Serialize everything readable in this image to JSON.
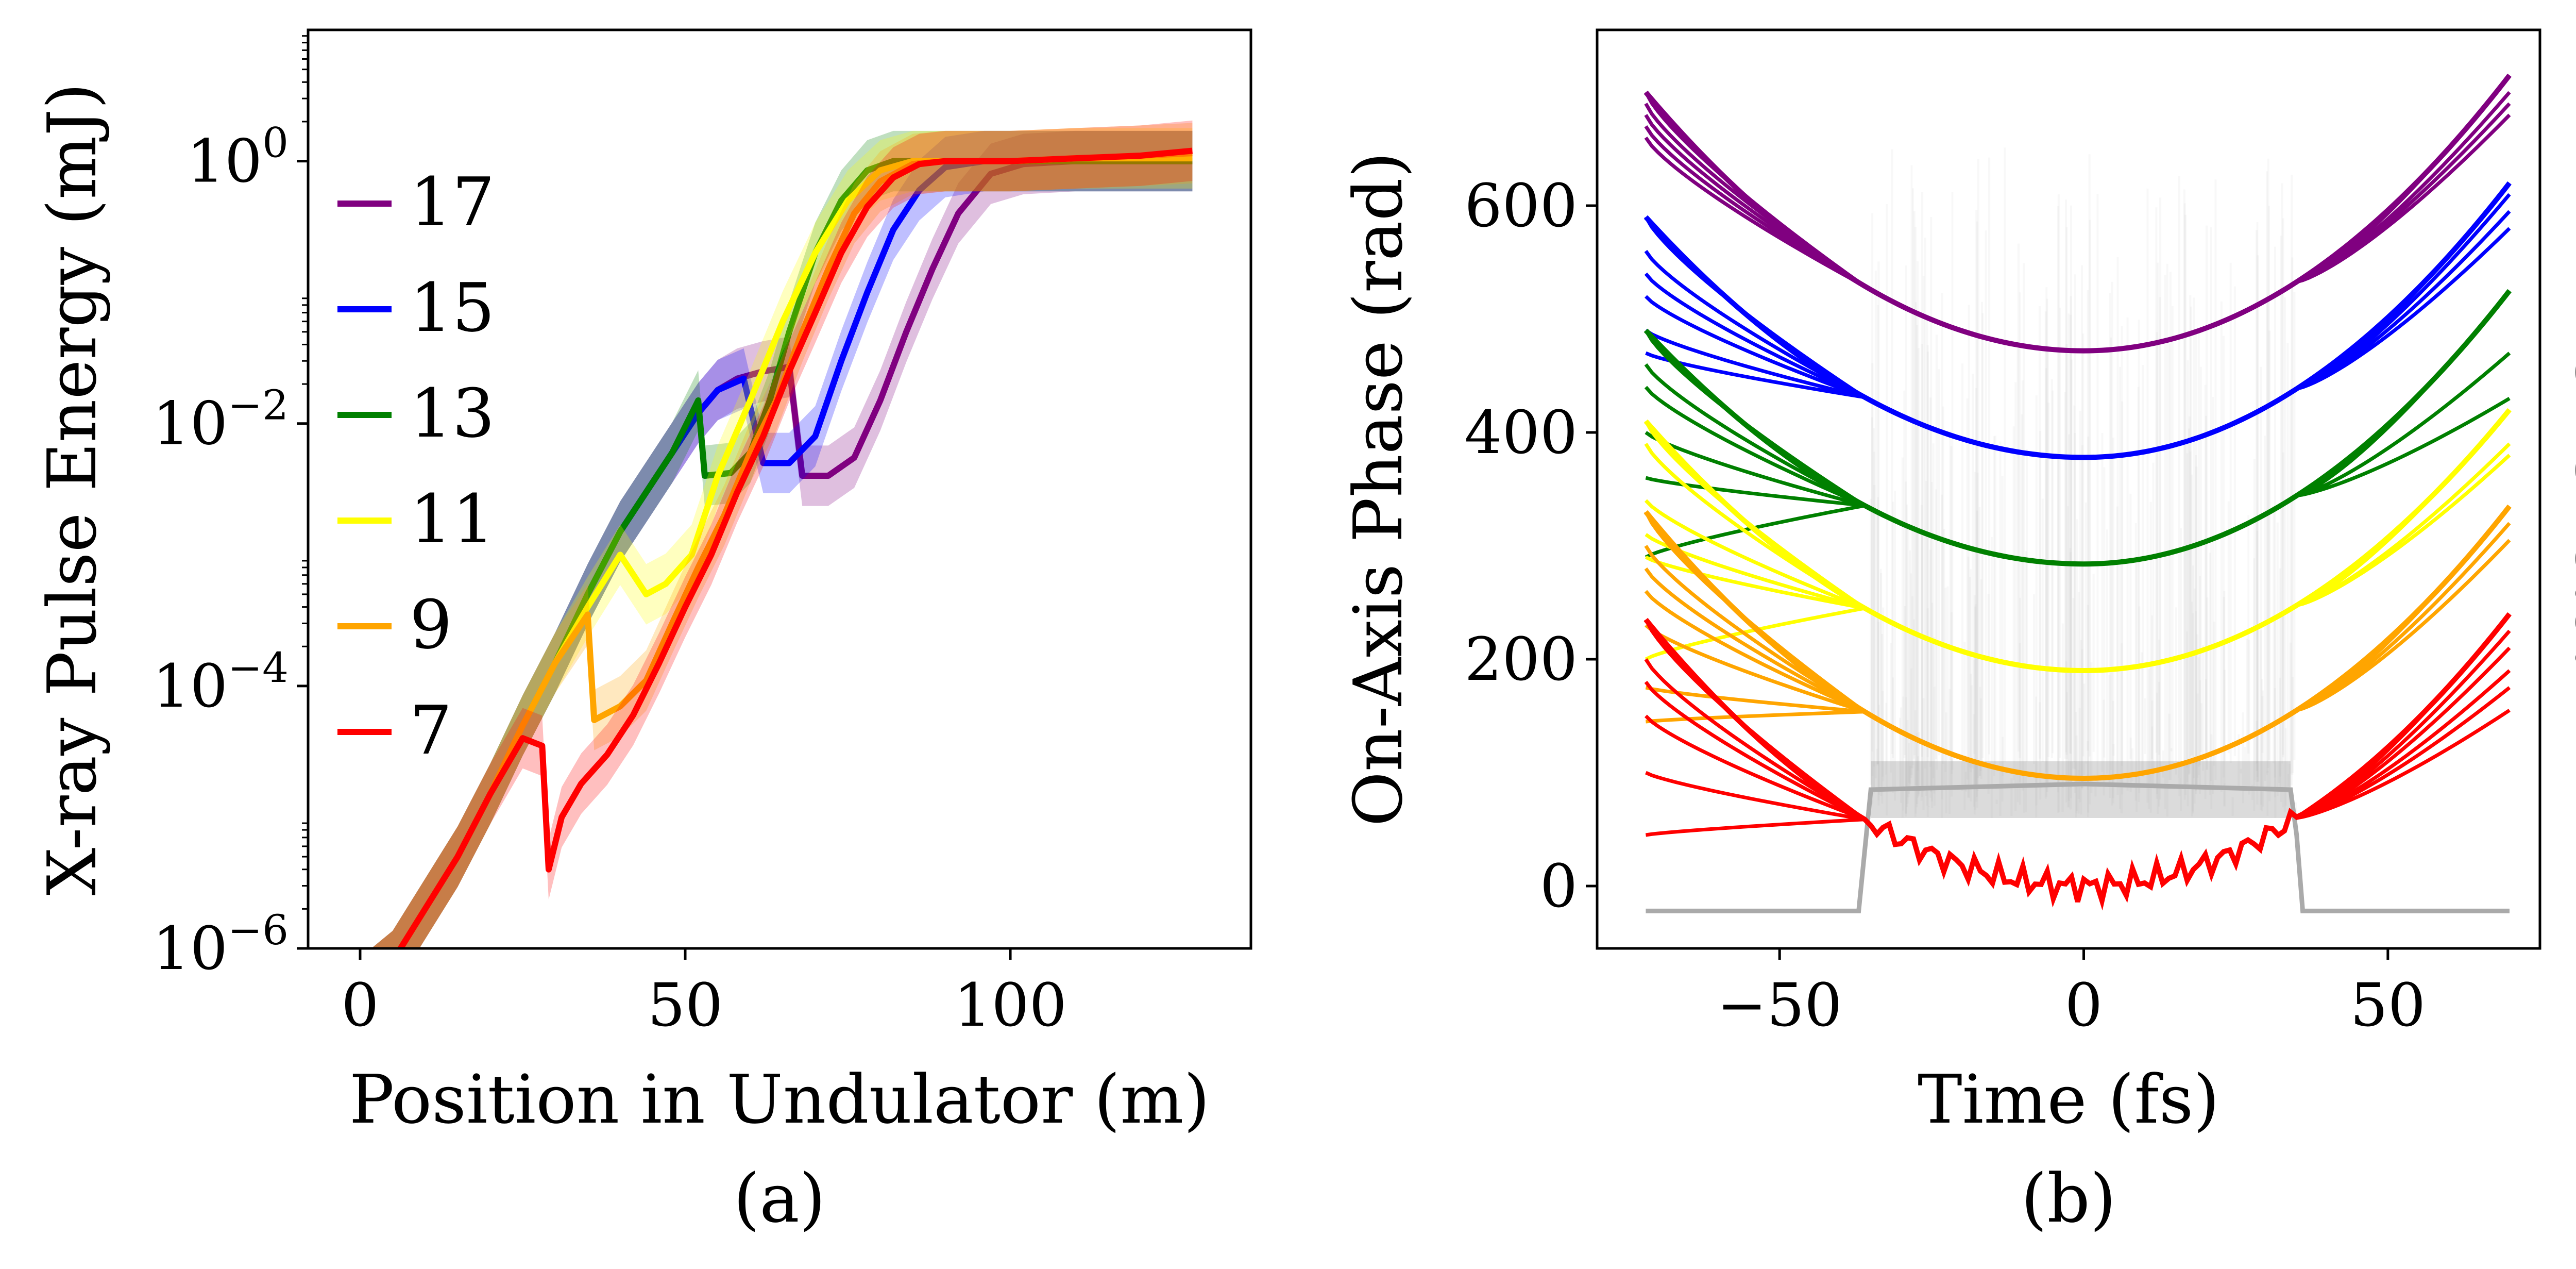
{
  "chart_data": [
    {
      "type": "line",
      "panel_label": "(a)",
      "xlabel": "Position in Undulator (m)",
      "ylabel": "X-ray Pulse Energy (mJ)",
      "xlim": [
        -8,
        137
      ],
      "ylim": [
        1e-06,
        10
      ],
      "yscale": "log",
      "xticks": [
        0,
        50,
        100
      ],
      "xtick_labels": [
        "0",
        "50",
        "100"
      ],
      "yticks": [
        1e-06,
        0.0001,
        0.01,
        1
      ],
      "ytick_labels": [
        {
          "base": "10",
          "exp": "−6"
        },
        {
          "base": "10",
          "exp": "−4"
        },
        {
          "base": "10",
          "exp": "−2"
        },
        {
          "base": "10",
          "exp": "0"
        }
      ],
      "legend_position": "upper-left",
      "series": [
        {
          "name": "17",
          "color": "#800080",
          "x": [
            0,
            5,
            10,
            15,
            20,
            25,
            30,
            35,
            40,
            44,
            48,
            52,
            55,
            58,
            62,
            66,
            68,
            72,
            76,
            80,
            84,
            88,
            92,
            97,
            102,
            110,
            118,
            128
          ],
          "y": [
            5e-07,
            8e-07,
            2e-06,
            5e-06,
            1.5e-05,
            5e-05,
            0.00015,
            0.0005,
            0.0015,
            0.003,
            0.006,
            0.012,
            0.018,
            0.022,
            0.025,
            0.027,
            0.004,
            0.004,
            0.0055,
            0.015,
            0.05,
            0.15,
            0.4,
            0.8,
            0.95,
            1.0,
            1.0,
            1.0
          ]
        },
        {
          "name": "15",
          "color": "#0000FF",
          "x": [
            0,
            5,
            10,
            15,
            20,
            25,
            30,
            35,
            40,
            44,
            48,
            52,
            55,
            59,
            62,
            66,
            70,
            74,
            78,
            82,
            86,
            90,
            96,
            102,
            110,
            118,
            128
          ],
          "y": [
            5e-07,
            8e-07,
            2e-06,
            5e-06,
            1.5e-05,
            5e-05,
            0.00015,
            0.0005,
            0.0015,
            0.003,
            0.006,
            0.012,
            0.018,
            0.022,
            0.005,
            0.005,
            0.008,
            0.03,
            0.1,
            0.3,
            0.6,
            0.9,
            1.0,
            1.0,
            1.0,
            1.0,
            1.0
          ]
        },
        {
          "name": "13",
          "color": "#008000",
          "x": [
            0,
            5,
            10,
            15,
            20,
            25,
            30,
            35,
            40,
            44,
            48,
            52,
            53,
            57,
            60,
            63,
            66,
            70,
            74,
            78,
            82,
            86,
            90,
            95,
            100,
            110,
            120,
            128
          ],
          "y": [
            5e-07,
            8e-07,
            2e-06,
            5e-06,
            1.5e-05,
            5e-05,
            0.00015,
            0.0005,
            0.0015,
            0.003,
            0.006,
            0.015,
            0.004,
            0.0042,
            0.006,
            0.015,
            0.05,
            0.2,
            0.5,
            0.85,
            1.0,
            1.0,
            1.0,
            1.0,
            1.0,
            1.0,
            1.0,
            1.0
          ]
        },
        {
          "name": "11",
          "color": "#FFFF00",
          "x": [
            0,
            5,
            10,
            15,
            20,
            25,
            30,
            35,
            40,
            44,
            47,
            51,
            55,
            60,
            65,
            70,
            75,
            80,
            85,
            90,
            95,
            100,
            110,
            120,
            128
          ],
          "y": [
            5e-07,
            8e-07,
            2e-06,
            5e-06,
            1.5e-05,
            5e-05,
            0.00015,
            0.0004,
            0.001,
            0.0005,
            0.0006,
            0.001,
            0.004,
            0.015,
            0.06,
            0.2,
            0.5,
            0.85,
            1.0,
            1.0,
            1.0,
            1.0,
            1.05,
            1.05,
            1.05
          ]
        },
        {
          "name": "9",
          "color": "#FFA500",
          "x": [
            0,
            5,
            10,
            15,
            20,
            25,
            30,
            35,
            36,
            40,
            44,
            48,
            52,
            56,
            60,
            64,
            68,
            72,
            76,
            80,
            85,
            90,
            95,
            100,
            110,
            120,
            128
          ],
          "y": [
            5e-07,
            8e-07,
            2e-06,
            5e-06,
            1.5e-05,
            5e-05,
            0.00015,
            0.00035,
            5.5e-05,
            7e-05,
            0.00011,
            0.0003,
            0.0008,
            0.002,
            0.006,
            0.015,
            0.05,
            0.15,
            0.4,
            0.7,
            0.95,
            1.0,
            1.0,
            1.0,
            1.05,
            1.1,
            1.15
          ]
        },
        {
          "name": "7",
          "color": "#FF0000",
          "x": [
            0,
            5,
            10,
            15,
            20,
            25,
            28,
            29,
            31,
            34,
            38,
            42,
            46,
            50,
            54,
            58,
            62,
            66,
            70,
            74,
            78,
            82,
            86,
            90,
            95,
            100,
            110,
            120,
            128
          ],
          "y": [
            5e-07,
            8e-07,
            2e-06,
            5e-06,
            1.5e-05,
            4e-05,
            3.5e-05,
            4e-06,
            1e-05,
            1.8e-05,
            3e-05,
            6e-05,
            0.00015,
            0.0004,
            0.001,
            0.003,
            0.008,
            0.025,
            0.07,
            0.2,
            0.45,
            0.75,
            0.95,
            1.0,
            1.0,
            1.0,
            1.05,
            1.1,
            1.2
          ]
        }
      ]
    },
    {
      "type": "line",
      "panel_label": "(b)",
      "xlabel": "Time (fs)",
      "ylabel": "On-Axis Phase (rad)",
      "right_label": "Power a.u.",
      "xlim": [
        -80,
        75
      ],
      "ylim": [
        -55,
        755
      ],
      "xticks": [
        -50,
        0,
        50
      ],
      "xtick_labels": [
        "−50",
        "0",
        "50"
      ],
      "yticks": [
        0,
        200,
        400,
        600
      ],
      "ytick_labels": [
        "0",
        "200",
        "400",
        "600"
      ],
      "power_trace": {
        "color": "#aaaaaa",
        "t": [
          -72,
          -37,
          -35,
          0,
          34,
          35,
          36,
          70
        ],
        "level": [
          -22,
          -22,
          85,
          90,
          85,
          45,
          -22,
          -22
        ]
      },
      "curves": [
        {
          "harmonic": "17",
          "color": "#800080",
          "min": 472,
          "left_start": 700,
          "right_end": 715,
          "left_spread": [
            700,
            690,
            680,
            670,
            660
          ],
          "right_spread": [
            715,
            700,
            690,
            680
          ]
        },
        {
          "harmonic": "15",
          "color": "#0000FF",
          "min": 378,
          "left_start": 590,
          "right_end": 620,
          "left_spread": [
            590,
            560,
            540,
            520,
            490,
            470
          ],
          "right_spread": [
            620,
            610,
            595,
            580
          ]
        },
        {
          "harmonic": "13",
          "color": "#008000",
          "min": 284,
          "left_start": 490,
          "right_end": 525,
          "left_spread": [
            490,
            460,
            440,
            400,
            360,
            290
          ],
          "right_spread": [
            525,
            470,
            430
          ]
        },
        {
          "harmonic": "11",
          "color": "#FFFF00",
          "min": 190,
          "left_start": 410,
          "right_end": 420,
          "left_spread": [
            410,
            390,
            340,
            310,
            290,
            200
          ],
          "right_spread": [
            420,
            390,
            380
          ]
        },
        {
          "harmonic": "9",
          "color": "#FFA500",
          "min": 95,
          "left_start": 330,
          "right_end": 335,
          "left_spread": [
            330,
            300,
            280,
            260,
            230,
            175,
            145
          ],
          "right_spread": [
            335,
            320,
            305
          ]
        },
        {
          "harmonic": "7",
          "color": "#FF0000",
          "min": 0,
          "left_start": 235,
          "right_end": 240,
          "left_spread": [
            235,
            200,
            180,
            150,
            100,
            45
          ],
          "right_spread": [
            240,
            225,
            210,
            190,
            175,
            155
          ]
        }
      ]
    }
  ]
}
